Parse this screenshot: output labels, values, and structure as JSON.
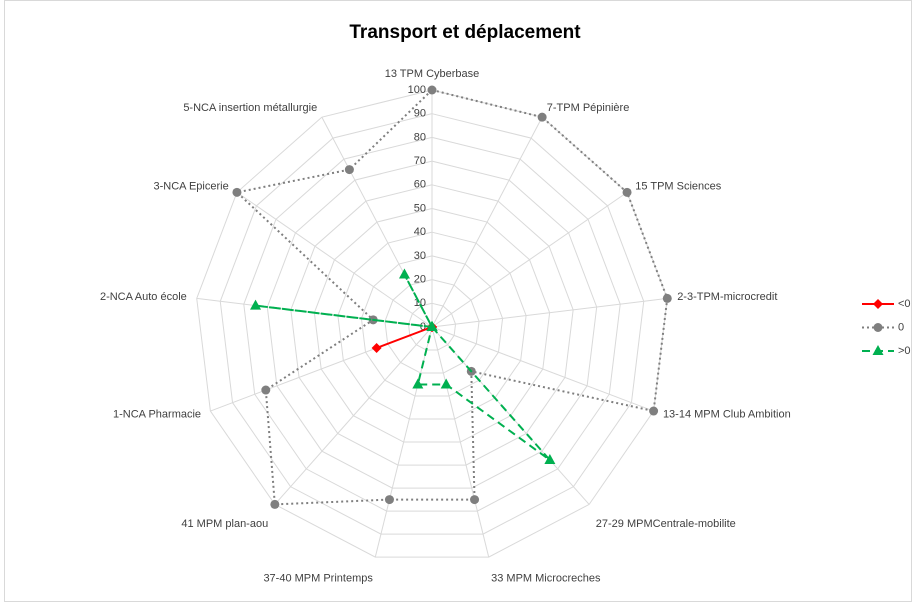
{
  "chart_data": {
    "type": "radar",
    "title": "Transport et déplacement",
    "categories": [
      "13 TPM Cyberbase",
      "7-TPM Pépinière",
      "15 TPM Sciences",
      "2-3-TPM-microcredit",
      "13-14 MPM Club Ambition",
      "27-29 MPMCentrale-mobilite",
      "33 MPM Microcreches",
      "37-40 MPM Printemps",
      "41 MPM plan-aou",
      "1-NCA Pharmacie",
      "2-NCA Auto école",
      "3-NCA Epicerie",
      "5-NCA insertion métallurgie"
    ],
    "series": [
      {
        "name": "<0",
        "color": "#ff0000",
        "dash": "solid",
        "marker": "diamond",
        "values": [
          0,
          0,
          0,
          0,
          0,
          0,
          0,
          0,
          0,
          25,
          0,
          0,
          0
        ]
      },
      {
        "name": "0",
        "color": "#7f7f7f",
        "dash": "dotted",
        "marker": "circle",
        "values": [
          100,
          100,
          100,
          100,
          100,
          25,
          75,
          75,
          100,
          75,
          25,
          100,
          75
        ]
      },
      {
        "name": ">0",
        "color": "#00b050",
        "dash": "dashed",
        "marker": "triangle",
        "values": [
          0,
          0,
          0,
          0,
          0,
          75,
          25,
          25,
          0,
          0,
          75,
          0,
          25
        ]
      }
    ],
    "rlim": [
      0,
      100
    ],
    "rticks": [
      0,
      10,
      20,
      30,
      40,
      50,
      60,
      70,
      80,
      90,
      100
    ],
    "grid": true,
    "legend": "right"
  }
}
